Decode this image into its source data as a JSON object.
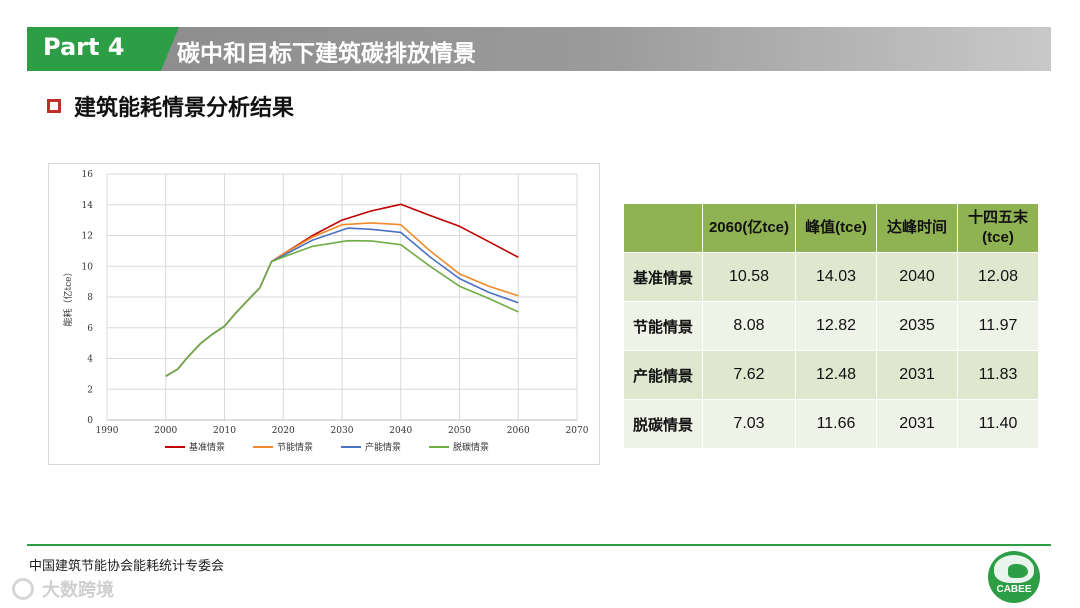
{
  "header": {
    "part_label": "Part 4",
    "title": "碳中和目标下建筑碳排放情景"
  },
  "subtitle": "建筑能耗情景分析结果",
  "chart_data": {
    "type": "line",
    "ylabel": "能耗（亿tce）",
    "xlim": [
      1990,
      2070
    ],
    "ylim": [
      0,
      16
    ],
    "xticks": [
      1990,
      2000,
      2010,
      2020,
      2030,
      2040,
      2050,
      2060,
      2070
    ],
    "yticks": [
      0,
      2,
      4,
      6,
      8,
      10,
      12,
      14,
      16
    ],
    "grid": true,
    "legend_position": "bottom",
    "series": [
      {
        "name": "基准情景",
        "color": "#c00000",
        "points": [
          [
            2000,
            2.85
          ],
          [
            2002,
            3.3
          ],
          [
            2004,
            4.2
          ],
          [
            2006,
            5.0
          ],
          [
            2008,
            5.6
          ],
          [
            2010,
            6.1
          ],
          [
            2012,
            7.0
          ],
          [
            2014,
            7.8
          ],
          [
            2016,
            8.6
          ],
          [
            2018,
            10.3
          ],
          [
            2020,
            10.8
          ],
          [
            2025,
            12.0
          ],
          [
            2030,
            13.0
          ],
          [
            2035,
            13.6
          ],
          [
            2040,
            14.03
          ],
          [
            2045,
            13.3
          ],
          [
            2050,
            12.6
          ],
          [
            2055,
            11.6
          ],
          [
            2060,
            10.58
          ]
        ]
      },
      {
        "name": "节能情景",
        "color": "#f08a2c",
        "points": [
          [
            2000,
            2.85
          ],
          [
            2002,
            3.3
          ],
          [
            2004,
            4.2
          ],
          [
            2006,
            5.0
          ],
          [
            2008,
            5.6
          ],
          [
            2010,
            6.1
          ],
          [
            2012,
            7.0
          ],
          [
            2014,
            7.8
          ],
          [
            2016,
            8.6
          ],
          [
            2018,
            10.3
          ],
          [
            2020,
            10.8
          ],
          [
            2025,
            11.9
          ],
          [
            2030,
            12.7
          ],
          [
            2035,
            12.82
          ],
          [
            2040,
            12.7
          ],
          [
            2045,
            11.0
          ],
          [
            2050,
            9.5
          ],
          [
            2055,
            8.7
          ],
          [
            2060,
            8.08
          ]
        ]
      },
      {
        "name": "产能情景",
        "color": "#4a72c4",
        "points": [
          [
            2000,
            2.85
          ],
          [
            2002,
            3.3
          ],
          [
            2004,
            4.2
          ],
          [
            2006,
            5.0
          ],
          [
            2008,
            5.6
          ],
          [
            2010,
            6.1
          ],
          [
            2012,
            7.0
          ],
          [
            2014,
            7.8
          ],
          [
            2016,
            8.6
          ],
          [
            2018,
            10.3
          ],
          [
            2020,
            10.7
          ],
          [
            2025,
            11.7
          ],
          [
            2031,
            12.48
          ],
          [
            2035,
            12.4
          ],
          [
            2040,
            12.2
          ],
          [
            2045,
            10.6
          ],
          [
            2050,
            9.2
          ],
          [
            2055,
            8.3
          ],
          [
            2060,
            7.62
          ]
        ]
      },
      {
        "name": "脱碳情景",
        "color": "#70ad47",
        "points": [
          [
            2000,
            2.85
          ],
          [
            2002,
            3.3
          ],
          [
            2004,
            4.2
          ],
          [
            2006,
            5.0
          ],
          [
            2008,
            5.6
          ],
          [
            2010,
            6.1
          ],
          [
            2012,
            7.0
          ],
          [
            2014,
            7.8
          ],
          [
            2016,
            8.6
          ],
          [
            2018,
            10.3
          ],
          [
            2020,
            10.6
          ],
          [
            2025,
            11.3
          ],
          [
            2031,
            11.66
          ],
          [
            2035,
            11.65
          ],
          [
            2040,
            11.4
          ],
          [
            2045,
            10.0
          ],
          [
            2050,
            8.7
          ],
          [
            2055,
            7.9
          ],
          [
            2060,
            7.03
          ]
        ]
      }
    ]
  },
  "table": {
    "headers": [
      "",
      "2060(亿tce)",
      "峰值(tce)",
      "达峰时间",
      "十四五末\n(tce)"
    ],
    "rows": [
      [
        "基准情景",
        "10.58",
        "14.03",
        "2040",
        "12.08"
      ],
      [
        "节能情景",
        "8.08",
        "12.82",
        "2035",
        "11.97"
      ],
      [
        "产能情景",
        "7.62",
        "12.48",
        "2031",
        "11.83"
      ],
      [
        "脱碳情景",
        "7.03",
        "11.66",
        "2031",
        "11.40"
      ]
    ]
  },
  "footer": {
    "org": "中国建筑节能协会能耗统计专委会",
    "logo_text": "CABEE",
    "watermark": "大数跨境"
  }
}
